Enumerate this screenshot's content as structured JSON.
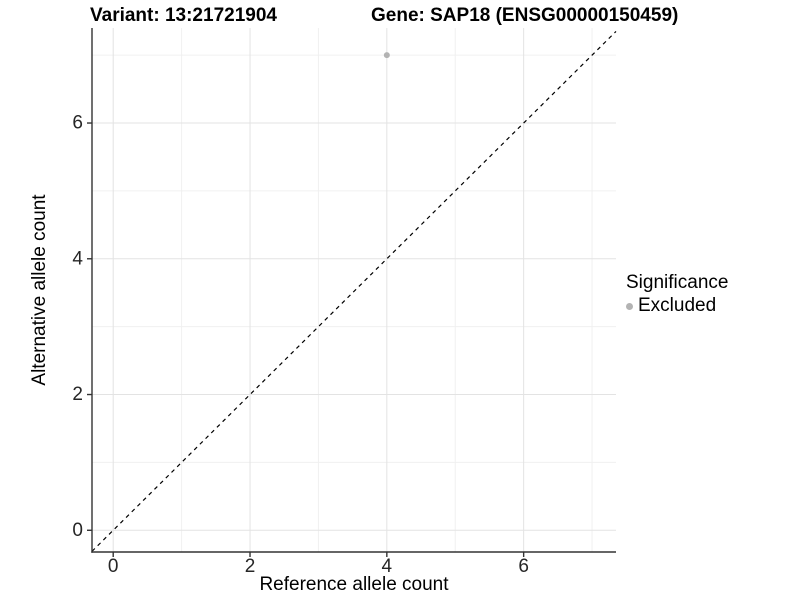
{
  "chart_data": {
    "type": "scatter",
    "title_left": "Variant: 13:21721904",
    "title_right": "Gene: SAP18 (ENSG00000150459)",
    "xlabel": "Reference allele count",
    "ylabel": "Alternative allele count",
    "xlim": [
      -0.31,
      7.35
    ],
    "ylim": [
      -0.32,
      7.4
    ],
    "x_major_ticks": [
      0,
      2,
      4,
      6
    ],
    "y_major_ticks": [
      0,
      2,
      4,
      6
    ],
    "x_minor_ticks": [
      1,
      3,
      5,
      7
    ],
    "y_minor_ticks": [
      1,
      3,
      5,
      7
    ],
    "grid": true,
    "identity_line": {
      "style": "dashed",
      "color": "#000000",
      "from": -0.31,
      "to": 7.35
    },
    "series": [
      {
        "name": "Excluded",
        "color": "#b3b3b3",
        "point_radius": 3,
        "points": [
          {
            "x": 4,
            "y": 7
          }
        ]
      }
    ],
    "legend": {
      "title": "Significance",
      "position": "right",
      "items": [
        {
          "label": "Excluded",
          "color": "#b3b3b3"
        }
      ]
    },
    "colors": {
      "major_grid": "#e3e3e3",
      "minor_grid": "#f0f0f0",
      "axis_line": "#333333",
      "tick_text": "#262626"
    }
  }
}
